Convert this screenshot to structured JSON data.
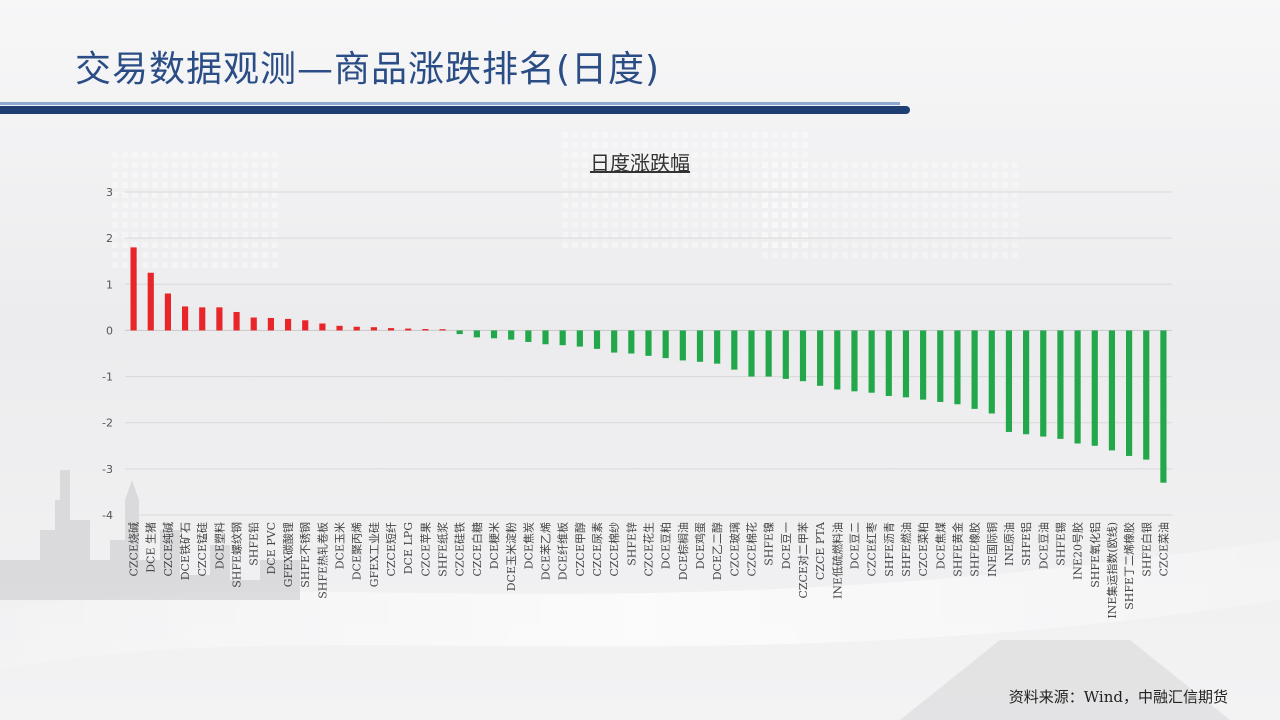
{
  "header": {
    "title": "交易数据观测—商品涨跌排名(日度)"
  },
  "footer": {
    "source": "资料来源：Wind，中融汇信期货"
  },
  "colors": {
    "up": "#e8262a",
    "down": "#22a84a",
    "title": "#2a4d86",
    "bar": "#1f3e73"
  },
  "chart_data": {
    "type": "bar",
    "title": "日度涨跌幅",
    "ylim": [
      -4,
      3
    ],
    "yticks": [
      3,
      2,
      1,
      0,
      -1,
      -2,
      -3,
      -4
    ],
    "grid": true,
    "categories": [
      "CZCE烧碱",
      "DCE 生猪",
      "CZCE纯碱",
      "DCE铁矿石",
      "CZCE锰硅",
      "DCE塑料",
      "SHFE螺纹钢",
      "SHFE铅",
      "DCE PVC",
      "GFEX碳酸锂",
      "SHFE不锈钢",
      "SHFE热轧卷板",
      "DCE玉米",
      "DCE聚丙烯",
      "GFEX工业硅",
      "CZCE短纤",
      "DCE LPG",
      "CZCE苹果",
      "SHFE纸浆",
      "CZCE硅铁",
      "CZCE白糖",
      "DCE粳米",
      "DCE玉米淀粉",
      "DCE焦炭",
      "DCE苯乙烯",
      "DCE纤维板",
      "CZCE甲醇",
      "CZCE尿素",
      "CZCE棉纱",
      "SHFE锌",
      "CZCE花生",
      "DCE豆粕",
      "DCE棕榈油",
      "DCE鸡蛋",
      "DCE乙二醇",
      "CZCE玻璃",
      "CZCE棉花",
      "SHFE镍",
      "DCE豆一",
      "CZCE对二甲苯",
      "CZCE PTA",
      "INE低硫燃料油",
      "DCE豆二",
      "CZCE红枣",
      "SHFE沥青",
      "SHFE燃油",
      "CZCE菜粕",
      "DCE焦煤",
      "SHFE黄金",
      "SHFE橡胶",
      "INE国际铜",
      "INE原油",
      "SHFE铝",
      "DCE豆油",
      "SHFE锡",
      "INE20号胶",
      "SHFE氧化铝",
      "INE集运指数(欧线)",
      "SHFE丁二烯橡胶",
      "SHFE白银",
      "CZCE菜油"
    ],
    "values": [
      1.8,
      1.25,
      0.8,
      0.52,
      0.5,
      0.5,
      0.4,
      0.28,
      0.27,
      0.25,
      0.22,
      0.15,
      0.1,
      0.08,
      0.07,
      0.05,
      0.04,
      0.03,
      0.0,
      -0.08,
      -0.15,
      -0.17,
      -0.2,
      -0.25,
      -0.3,
      -0.32,
      -0.35,
      -0.4,
      -0.48,
      -0.5,
      -0.55,
      -0.6,
      -0.65,
      -0.68,
      -0.72,
      -0.85,
      -1.0,
      -1.0,
      -1.05,
      -1.1,
      -1.2,
      -1.28,
      -1.32,
      -1.35,
      -1.42,
      -1.45,
      -1.5,
      -1.55,
      -1.6,
      -1.7,
      -1.8,
      -2.2,
      -2.25,
      -2.3,
      -2.35,
      -2.45,
      -2.5,
      -2.6,
      -2.72,
      -2.8,
      -3.3
    ]
  }
}
